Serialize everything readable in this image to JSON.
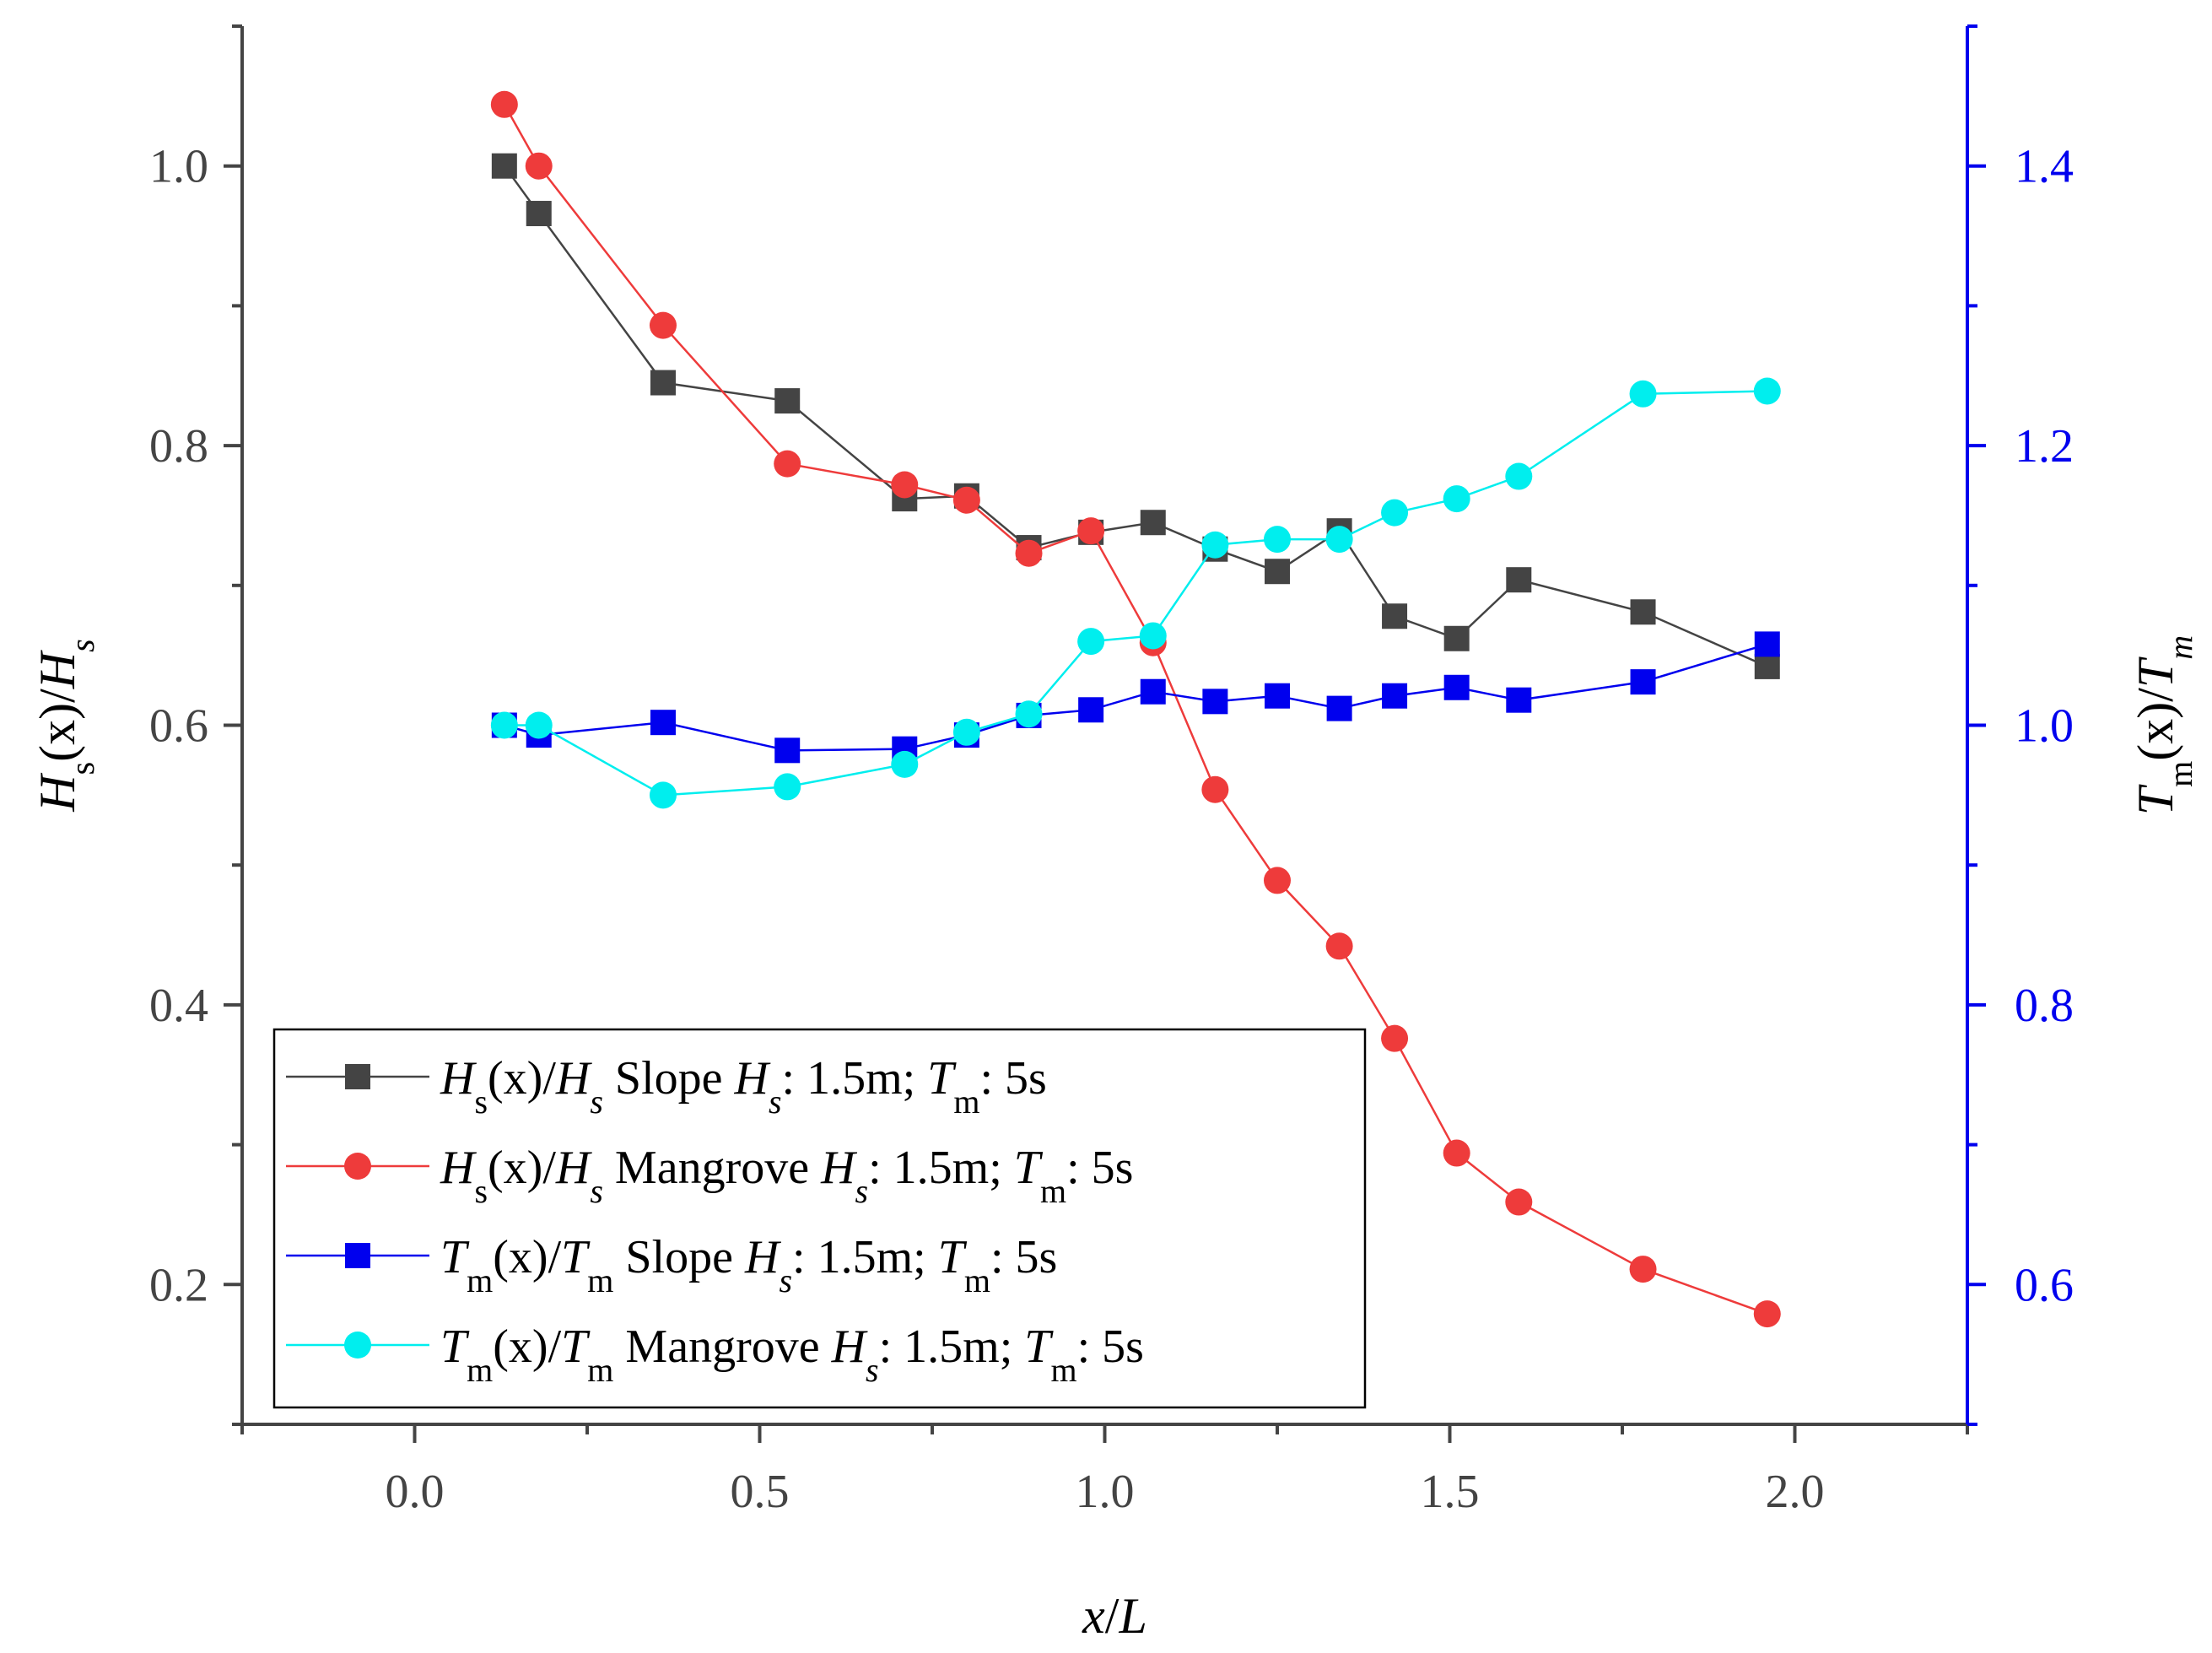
{
  "chart_data": {
    "type": "line",
    "xlabel": "x/L",
    "ylabel_left": "Hs(x)/Hs",
    "ylabel_right": "Tm(x)/Tm",
    "xlim": [
      -0.25,
      2.25
    ],
    "ylim_left": [
      0.1,
      1.1
    ],
    "ylim_right": [
      0.5,
      1.5
    ],
    "x_ticks": [
      "0.0",
      "0.5",
      "1.0",
      "1.5",
      "2.0"
    ],
    "y_left_ticks": [
      "0.2",
      "0.4",
      "0.6",
      "0.8",
      "1.0"
    ],
    "y_right_ticks": [
      "0.6",
      "0.8",
      "1.0",
      "1.2",
      "1.4"
    ],
    "legend_position": "bottom-left",
    "series": [
      {
        "name": "Hs(x)/Hs Slope Hs: 1.5m; Tm: 5s",
        "axis": "left",
        "marker": "square",
        "color": "#444444",
        "legend_parts": [
          "H",
          "s",
          "(x)/",
          "H",
          "s",
          " Slope ",
          "H",
          "s",
          ": 1.5m; ",
          "T",
          "m",
          ": 5s"
        ],
        "x": [
          0.13,
          0.18,
          0.36,
          0.54,
          0.71,
          0.8,
          0.89,
          0.98,
          1.07,
          1.16,
          1.25,
          1.34,
          1.42,
          1.51,
          1.6,
          1.78,
          1.96
        ],
        "values": [
          1.0,
          0.966,
          0.845,
          0.832,
          0.762,
          0.764,
          0.727,
          0.738,
          0.745,
          0.726,
          0.71,
          0.739,
          0.678,
          0.662,
          0.704,
          0.681,
          0.642
        ]
      },
      {
        "name": "Hs(x)/Hs Mangrove Hs: 1.5m; Tm: 5s",
        "axis": "left",
        "marker": "circle",
        "color": "#ee3b3b",
        "legend_parts": [
          "H",
          "s",
          "(x)/",
          "H",
          "s",
          " Mangrove ",
          "H",
          "s",
          ": 1.5m; ",
          "T",
          "m",
          ": 5s"
        ],
        "x": [
          0.13,
          0.18,
          0.36,
          0.54,
          0.71,
          0.8,
          0.89,
          0.98,
          1.07,
          1.16,
          1.25,
          1.34,
          1.42,
          1.51,
          1.6,
          1.78,
          1.96
        ],
        "values": [
          1.044,
          1.0,
          0.886,
          0.787,
          0.772,
          0.761,
          0.723,
          0.739,
          0.659,
          0.554,
          0.489,
          0.442,
          0.376,
          0.294,
          0.259,
          0.211,
          0.179
        ]
      },
      {
        "name": "Tm(x)/Tm Slope Hs: 1.5m; Tm: 5s",
        "axis": "right",
        "marker": "square",
        "color": "#0000ee",
        "legend_parts": [
          "T",
          "m",
          "(x)/",
          "T",
          "m",
          " Slope ",
          "H",
          "s",
          ": 1.5m; ",
          "T",
          "m",
          ": 5s"
        ],
        "x": [
          0.13,
          0.18,
          0.36,
          0.54,
          0.71,
          0.8,
          0.89,
          0.98,
          1.07,
          1.16,
          1.25,
          1.34,
          1.42,
          1.51,
          1.6,
          1.78,
          1.96
        ],
        "values": [
          1.0,
          0.993,
          1.002,
          0.982,
          0.983,
          0.993,
          1.007,
          1.011,
          1.024,
          1.017,
          1.021,
          1.012,
          1.021,
          1.027,
          1.018,
          1.031,
          1.058
        ]
      },
      {
        "name": "Tm(x)/Tm Mangrove Hs: 1.5m; Tm: 5s",
        "axis": "right",
        "marker": "circle",
        "color": "#00eeee",
        "legend_parts": [
          "T",
          "m",
          "(x)/",
          "T",
          "m",
          " Mangrove ",
          "H",
          "s",
          ": 1.5m; ",
          "T",
          "m",
          ": 5s"
        ],
        "x": [
          0.13,
          0.18,
          0.36,
          0.54,
          0.71,
          0.8,
          0.89,
          0.98,
          1.07,
          1.16,
          1.25,
          1.34,
          1.42,
          1.51,
          1.6,
          1.78,
          1.96
        ],
        "values": [
          1.0,
          1.0,
          0.95,
          0.956,
          0.972,
          0.995,
          1.008,
          1.06,
          1.064,
          1.129,
          1.133,
          1.133,
          1.152,
          1.162,
          1.178,
          1.237,
          1.239
        ]
      }
    ]
  }
}
